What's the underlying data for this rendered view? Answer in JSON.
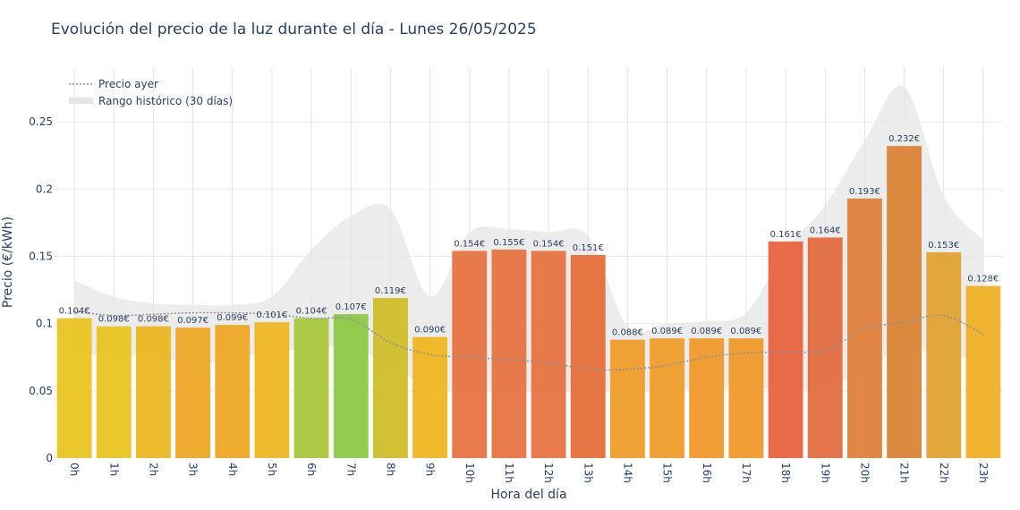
{
  "chart_data": {
    "type": "bar",
    "title": "Evolución del precio de la luz durante el día - Lunes 26/05/2025",
    "xlabel": "Hora del día",
    "ylabel": "Precio (€/kWh)",
    "ylim": [
      0,
      0.29
    ],
    "yticks": [
      "0",
      "0.05",
      "0.1",
      "0.15",
      "0.2",
      "0.25"
    ],
    "ytick_values": [
      0,
      0.05,
      0.1,
      0.15,
      0.2,
      0.25
    ],
    "categories": [
      "0h",
      "1h",
      "2h",
      "3h",
      "4h",
      "5h",
      "6h",
      "7h",
      "8h",
      "9h",
      "10h",
      "11h",
      "12h",
      "13h",
      "14h",
      "15h",
      "16h",
      "17h",
      "18h",
      "19h",
      "20h",
      "21h",
      "22h",
      "23h"
    ],
    "series": [
      {
        "name": "",
        "type": "bar",
        "values": [
          0.104,
          0.098,
          0.098,
          0.097,
          0.099,
          0.101,
          0.104,
          0.107,
          0.119,
          0.09,
          0.154,
          0.155,
          0.154,
          0.151,
          0.088,
          0.089,
          0.089,
          0.089,
          0.161,
          0.164,
          0.193,
          0.232,
          0.153,
          0.128
        ],
        "labels": [
          "0.104€",
          "0.098€",
          "0.098€",
          "0.097€",
          "0.099€",
          "0.101€",
          "0.104€",
          "0.107€",
          "0.119€",
          "0.090€",
          "0.154€",
          "0.155€",
          "0.154€",
          "0.151€",
          "0.088€",
          "0.089€",
          "0.089€",
          "0.089€",
          "0.161€",
          "0.164€",
          "0.193€",
          "0.232€",
          "0.153€",
          "0.128€"
        ],
        "colors": [
          "#e8c21a",
          "#e8c21a",
          "#ecb41c",
          "#eda61e",
          "#eda61e",
          "#efb41c",
          "#a6c636",
          "#8ac840",
          "#cebb24",
          "#f0b41a",
          "#e5703c",
          "#e5703c",
          "#e5703c",
          "#e66a34",
          "#ef9a24",
          "#ef9a24",
          "#ef9624",
          "#ef9624",
          "#e6603a",
          "#e2683a",
          "#e07c36",
          "#d98030",
          "#dfa02c",
          "#f0ae1e"
        ]
      },
      {
        "name": "Precio ayer",
        "type": "line",
        "style": "dotted",
        "color": "#8c9199",
        "values": [
          0.109,
          0.106,
          0.107,
          0.108,
          0.108,
          0.107,
          0.104,
          0.103,
          0.086,
          0.077,
          0.075,
          0.073,
          0.071,
          0.066,
          0.066,
          0.069,
          0.075,
          0.078,
          0.079,
          0.08,
          0.096,
          0.101,
          0.106,
          0.092
        ]
      },
      {
        "name": "Rango histórico (30 días)",
        "type": "band",
        "color": "#e5e5e5",
        "upper": [
          0.132,
          0.12,
          0.115,
          0.114,
          0.114,
          0.12,
          0.155,
          0.18,
          0.185,
          0.12,
          0.168,
          0.17,
          0.168,
          0.165,
          0.098,
          0.1,
          0.102,
          0.108,
          0.155,
          0.188,
          0.236,
          0.276,
          0.195,
          0.162
        ],
        "lower": [
          0.078,
          0.076,
          0.076,
          0.07,
          0.074,
          0.079,
          0.081,
          0.082,
          0.069,
          0.052,
          0.05,
          0.05,
          0.05,
          0.05,
          0.049,
          0.051,
          0.051,
          0.052,
          0.051,
          0.052,
          0.066,
          0.081,
          0.076,
          0.075
        ]
      }
    ],
    "legend": {
      "position": "top-left",
      "items": [
        "Precio ayer",
        "Rango histórico (30 días)"
      ]
    },
    "grid": true
  }
}
